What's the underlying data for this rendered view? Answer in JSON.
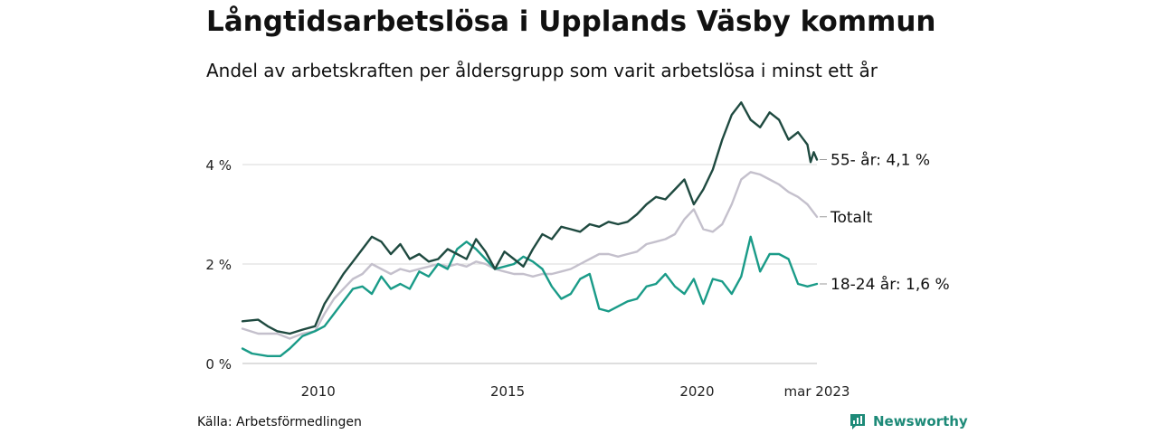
{
  "header": {
    "title": "Långtidsarbetslösa i Upplands Väsby kommun",
    "subtitle": "Andel av arbetskraften per åldersgrupp som varit arbetslösa i minst ett år"
  },
  "footer": {
    "source": "Källa: Arbetsförmedlingen",
    "brand": "Newsworthy"
  },
  "colors": {
    "series_55": "#1f4a40",
    "series_total": "#c4c0cc",
    "series_18_24": "#1a9b88",
    "grid": "#d9d9d9",
    "brand": "#1d8a78"
  },
  "chart_data": {
    "type": "line",
    "title": "Långtidsarbetslösa i Upplands Väsby kommun",
    "subtitle": "Andel av arbetskraften per åldersgrupp som varit arbetslösa i minst ett år",
    "xlim": [
      "2008-01",
      "2023-03"
    ],
    "ylim": [
      0,
      5.4
    ],
    "y_ticks": [
      0,
      2,
      4
    ],
    "y_tick_labels": [
      "0 %",
      "2 %",
      "4 %"
    ],
    "x_ticks": [
      "2010-01",
      "2015-01",
      "2020-01",
      "2023-03"
    ],
    "x_tick_labels": [
      "2010",
      "2015",
      "2020",
      "mar 2023"
    ],
    "grid": "horizontal",
    "legend": "end-of-line labels",
    "series": [
      {
        "name": "55- år",
        "end_label": "55- år: 4,1 %",
        "color": "#1f4a40",
        "points": [
          [
            "2008-01",
            0.85
          ],
          [
            "2008-06",
            0.88
          ],
          [
            "2008-09",
            0.75
          ],
          [
            "2008-12",
            0.65
          ],
          [
            "2009-04",
            0.6
          ],
          [
            "2009-08",
            0.68
          ],
          [
            "2009-12",
            0.75
          ],
          [
            "2010-03",
            1.2
          ],
          [
            "2010-06",
            1.5
          ],
          [
            "2010-09",
            1.8
          ],
          [
            "2010-12",
            2.05
          ],
          [
            "2011-03",
            2.3
          ],
          [
            "2011-06",
            2.55
          ],
          [
            "2011-09",
            2.45
          ],
          [
            "2011-12",
            2.2
          ],
          [
            "2012-03",
            2.4
          ],
          [
            "2012-06",
            2.1
          ],
          [
            "2012-09",
            2.2
          ],
          [
            "2012-12",
            2.05
          ],
          [
            "2013-03",
            2.1
          ],
          [
            "2013-06",
            2.3
          ],
          [
            "2013-09",
            2.2
          ],
          [
            "2013-12",
            2.1
          ],
          [
            "2014-03",
            2.5
          ],
          [
            "2014-06",
            2.25
          ],
          [
            "2014-09",
            1.9
          ],
          [
            "2014-12",
            2.25
          ],
          [
            "2015-03",
            2.1
          ],
          [
            "2015-06",
            1.95
          ],
          [
            "2015-09",
            2.3
          ],
          [
            "2015-12",
            2.6
          ],
          [
            "2016-03",
            2.5
          ],
          [
            "2016-06",
            2.75
          ],
          [
            "2016-09",
            2.7
          ],
          [
            "2016-12",
            2.65
          ],
          [
            "2017-03",
            2.8
          ],
          [
            "2017-06",
            2.75
          ],
          [
            "2017-09",
            2.85
          ],
          [
            "2017-12",
            2.8
          ],
          [
            "2018-03",
            2.85
          ],
          [
            "2018-06",
            3.0
          ],
          [
            "2018-09",
            3.2
          ],
          [
            "2018-12",
            3.35
          ],
          [
            "2019-03",
            3.3
          ],
          [
            "2019-06",
            3.5
          ],
          [
            "2019-09",
            3.7
          ],
          [
            "2019-12",
            3.2
          ],
          [
            "2020-03",
            3.5
          ],
          [
            "2020-06",
            3.9
          ],
          [
            "2020-09",
            4.5
          ],
          [
            "2020-12",
            5.0
          ],
          [
            "2021-03",
            5.25
          ],
          [
            "2021-06",
            4.9
          ],
          [
            "2021-09",
            4.75
          ],
          [
            "2021-12",
            5.05
          ],
          [
            "2022-03",
            4.9
          ],
          [
            "2022-06",
            4.5
          ],
          [
            "2022-09",
            4.65
          ],
          [
            "2022-12",
            4.4
          ],
          [
            "2023-01",
            4.05
          ],
          [
            "2023-02",
            4.25
          ],
          [
            "2023-03",
            4.1
          ]
        ]
      },
      {
        "name": "Totalt",
        "end_label": "Totalt",
        "color": "#c4c0cc",
        "points": [
          [
            "2008-01",
            0.7
          ],
          [
            "2008-06",
            0.6
          ],
          [
            "2008-12",
            0.6
          ],
          [
            "2009-04",
            0.5
          ],
          [
            "2009-08",
            0.6
          ],
          [
            "2009-12",
            0.65
          ],
          [
            "2010-03",
            1.0
          ],
          [
            "2010-06",
            1.3
          ],
          [
            "2010-09",
            1.5
          ],
          [
            "2010-12",
            1.7
          ],
          [
            "2011-03",
            1.8
          ],
          [
            "2011-06",
            2.0
          ],
          [
            "2011-09",
            1.9
          ],
          [
            "2011-12",
            1.8
          ],
          [
            "2012-03",
            1.9
          ],
          [
            "2012-06",
            1.85
          ],
          [
            "2012-09",
            1.9
          ],
          [
            "2012-12",
            1.95
          ],
          [
            "2013-03",
            2.0
          ],
          [
            "2013-06",
            1.95
          ],
          [
            "2013-09",
            2.0
          ],
          [
            "2013-12",
            1.95
          ],
          [
            "2014-03",
            2.05
          ],
          [
            "2014-06",
            2.0
          ],
          [
            "2014-09",
            1.9
          ],
          [
            "2014-12",
            1.85
          ],
          [
            "2015-03",
            1.8
          ],
          [
            "2015-06",
            1.8
          ],
          [
            "2015-09",
            1.75
          ],
          [
            "2015-12",
            1.8
          ],
          [
            "2016-03",
            1.8
          ],
          [
            "2016-06",
            1.85
          ],
          [
            "2016-09",
            1.9
          ],
          [
            "2016-12",
            2.0
          ],
          [
            "2017-03",
            2.1
          ],
          [
            "2017-06",
            2.2
          ],
          [
            "2017-09",
            2.2
          ],
          [
            "2017-12",
            2.15
          ],
          [
            "2018-03",
            2.2
          ],
          [
            "2018-06",
            2.25
          ],
          [
            "2018-09",
            2.4
          ],
          [
            "2018-12",
            2.45
          ],
          [
            "2019-03",
            2.5
          ],
          [
            "2019-06",
            2.6
          ],
          [
            "2019-09",
            2.9
          ],
          [
            "2019-12",
            3.1
          ],
          [
            "2020-03",
            2.7
          ],
          [
            "2020-06",
            2.65
          ],
          [
            "2020-09",
            2.8
          ],
          [
            "2020-12",
            3.2
          ],
          [
            "2021-03",
            3.7
          ],
          [
            "2021-06",
            3.85
          ],
          [
            "2021-09",
            3.8
          ],
          [
            "2021-12",
            3.7
          ],
          [
            "2022-03",
            3.6
          ],
          [
            "2022-06",
            3.45
          ],
          [
            "2022-09",
            3.35
          ],
          [
            "2022-12",
            3.2
          ],
          [
            "2023-03",
            2.95
          ]
        ]
      },
      {
        "name": "18-24 år",
        "end_label": "18-24 år: 1,6 %",
        "color": "#1a9b88",
        "points": [
          [
            "2008-01",
            0.3
          ],
          [
            "2008-04",
            0.2
          ],
          [
            "2008-09",
            0.15
          ],
          [
            "2009-01",
            0.15
          ],
          [
            "2009-04",
            0.3
          ],
          [
            "2009-08",
            0.55
          ],
          [
            "2009-12",
            0.65
          ],
          [
            "2010-03",
            0.75
          ],
          [
            "2010-06",
            1.0
          ],
          [
            "2010-09",
            1.25
          ],
          [
            "2010-12",
            1.5
          ],
          [
            "2011-03",
            1.55
          ],
          [
            "2011-06",
            1.4
          ],
          [
            "2011-09",
            1.75
          ],
          [
            "2011-12",
            1.5
          ],
          [
            "2012-03",
            1.6
          ],
          [
            "2012-06",
            1.5
          ],
          [
            "2012-09",
            1.85
          ],
          [
            "2012-12",
            1.75
          ],
          [
            "2013-03",
            2.0
          ],
          [
            "2013-06",
            1.9
          ],
          [
            "2013-09",
            2.3
          ],
          [
            "2013-12",
            2.45
          ],
          [
            "2014-03",
            2.3
          ],
          [
            "2014-06",
            2.1
          ],
          [
            "2014-09",
            1.9
          ],
          [
            "2014-12",
            1.95
          ],
          [
            "2015-03",
            2.0
          ],
          [
            "2015-06",
            2.15
          ],
          [
            "2015-09",
            2.05
          ],
          [
            "2015-12",
            1.9
          ],
          [
            "2016-03",
            1.55
          ],
          [
            "2016-06",
            1.3
          ],
          [
            "2016-09",
            1.4
          ],
          [
            "2016-12",
            1.7
          ],
          [
            "2017-03",
            1.8
          ],
          [
            "2017-06",
            1.1
          ],
          [
            "2017-09",
            1.05
          ],
          [
            "2017-12",
            1.15
          ],
          [
            "2018-03",
            1.25
          ],
          [
            "2018-06",
            1.3
          ],
          [
            "2018-09",
            1.55
          ],
          [
            "2018-12",
            1.6
          ],
          [
            "2019-03",
            1.8
          ],
          [
            "2019-06",
            1.55
          ],
          [
            "2019-09",
            1.4
          ],
          [
            "2019-12",
            1.7
          ],
          [
            "2020-03",
            1.2
          ],
          [
            "2020-06",
            1.7
          ],
          [
            "2020-09",
            1.65
          ],
          [
            "2020-12",
            1.4
          ],
          [
            "2021-03",
            1.75
          ],
          [
            "2021-06",
            2.55
          ],
          [
            "2021-09",
            1.85
          ],
          [
            "2021-12",
            2.2
          ],
          [
            "2022-03",
            2.2
          ],
          [
            "2022-06",
            2.1
          ],
          [
            "2022-09",
            1.6
          ],
          [
            "2022-12",
            1.55
          ],
          [
            "2023-03",
            1.6
          ]
        ]
      }
    ]
  }
}
